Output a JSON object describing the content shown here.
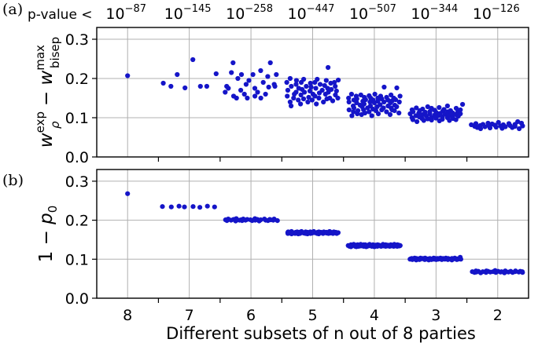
{
  "chart_data": [
    {
      "type": "scatter",
      "panel_label": "(a)",
      "ylabel": {
        "base": "w",
        "sub": "ρ",
        "sup": "exp",
        "op": " − ",
        "base2": "w",
        "sub2": "bisep",
        "sup2": "max"
      },
      "ylim": [
        0.0,
        0.33
      ],
      "yticks": [
        "0.0",
        "0.1",
        "0.2",
        "0.3"
      ],
      "grid": true,
      "marker_color": "#1515c8",
      "pvalue_prefix": "p-value <",
      "pvalues": [
        {
          "base": "10",
          "exp": "−87"
        },
        {
          "base": "10",
          "exp": "−145"
        },
        {
          "base": "10",
          "exp": "−258"
        },
        {
          "base": "10",
          "exp": "−447"
        },
        {
          "base": "10",
          "exp": "−507"
        },
        {
          "base": "10",
          "exp": "−344"
        },
        {
          "base": "10",
          "exp": "−126"
        }
      ],
      "groups": [
        {
          "category": "8",
          "y": [
            0.207
          ]
        },
        {
          "category": "7",
          "y": [
            0.188,
            0.18,
            0.21,
            0.176,
            0.248,
            0.18,
            0.18,
            0.212
          ]
        },
        {
          "category": "6",
          "y": [
            0.165,
            0.18,
            0.175,
            0.215,
            0.24,
            0.155,
            0.15,
            0.2,
            0.17,
            0.21,
            0.16,
            0.185,
            0.15,
            0.195,
            0.21,
            0.155,
            0.175,
            0.165,
            0.22,
            0.15,
            0.19,
            0.16,
            0.205,
            0.178,
            0.24,
            0.185,
            0.18,
            0.21
          ]
        },
        {
          "category": "5",
          "y": [
            0.19,
            0.155,
            0.17,
            0.14,
            0.2,
            0.13,
            0.18,
            0.16,
            0.15,
            0.185,
            0.165,
            0.195,
            0.145,
            0.175,
            0.135,
            0.19,
            0.158,
            0.172,
            0.148,
            0.198,
            0.165,
            0.18,
            0.14,
            0.152,
            0.188,
            0.168,
            0.178,
            0.145,
            0.16,
            0.19,
            0.155,
            0.175,
            0.135,
            0.198,
            0.163,
            0.15,
            0.185,
            0.17,
            0.14,
            0.182,
            0.16,
            0.195,
            0.148,
            0.175,
            0.165,
            0.228,
            0.15,
            0.188,
            0.172,
            0.143,
            0.19,
            0.158,
            0.18,
            0.15,
            0.168,
            0.196
          ]
        },
        {
          "category": "4",
          "y": [
            0.15,
            0.12,
            0.14,
            0.105,
            0.16,
            0.13,
            0.115,
            0.145,
            0.125,
            0.155,
            0.11,
            0.138,
            0.148,
            0.118,
            0.132,
            0.158,
            0.108,
            0.142,
            0.128,
            0.152,
            0.12,
            0.135,
            0.112,
            0.146,
            0.125,
            0.156,
            0.14,
            0.115,
            0.15,
            0.13,
            0.105,
            0.145,
            0.122,
            0.138,
            0.16,
            0.118,
            0.15,
            0.128,
            0.142,
            0.11,
            0.155,
            0.133,
            0.12,
            0.148,
            0.125,
            0.178,
            0.14,
            0.115,
            0.152,
            0.13,
            0.145,
            0.108,
            0.138,
            0.125,
            0.158,
            0.12,
            0.143,
            0.132,
            0.15,
            0.118,
            0.146,
            0.128,
            0.176,
            0.112,
            0.14,
            0.155
          ]
        },
        {
          "category": "3",
          "y": [
            0.11,
            0.1,
            0.12,
            0.095,
            0.115,
            0.105,
            0.125,
            0.09,
            0.112,
            0.102,
            0.118,
            0.098,
            0.108,
            0.122,
            0.093,
            0.114,
            0.104,
            0.128,
            0.097,
            0.11,
            0.116,
            0.101,
            0.124,
            0.094,
            0.107,
            0.119,
            0.099,
            0.113,
            0.105,
            0.126,
            0.092,
            0.111,
            0.103,
            0.117,
            0.096,
            0.121,
            0.109,
            0.1,
            0.115,
            0.13,
            0.106,
            0.093,
            0.118,
            0.102,
            0.112,
            0.098,
            0.124,
            0.108,
            0.095,
            0.114,
            0.104,
            0.12,
            0.11,
            0.134
          ]
        },
        {
          "category": "2",
          "y": [
            0.082,
            0.078,
            0.085,
            0.075,
            0.08,
            0.072,
            0.083,
            0.077,
            0.086,
            0.079,
            0.074,
            0.084,
            0.081,
            0.076,
            0.088,
            0.079,
            0.073,
            0.082,
            0.077,
            0.085,
            0.08,
            0.075,
            0.083,
            0.078,
            0.09,
            0.072,
            0.086,
            0.079
          ]
        }
      ]
    },
    {
      "type": "scatter",
      "panel_label": "(b)",
      "ylabel": {
        "prefix": "1 − ",
        "base": "p",
        "sub": "0"
      },
      "xlabel": "Different subsets of n out of 8 parties",
      "ylim": [
        0.0,
        0.33
      ],
      "yticks": [
        "0.0",
        "0.1",
        "0.2",
        "0.3"
      ],
      "grid": true,
      "marker_color": "#1515c8",
      "groups": [
        {
          "category": "8",
          "y": [
            0.268
          ]
        },
        {
          "category": "7",
          "y": [
            0.235,
            0.234,
            0.236,
            0.234,
            0.235,
            0.233,
            0.236,
            0.234
          ]
        },
        {
          "category": "6",
          "y": [
            0.201,
            0.199,
            0.203,
            0.2,
            0.202,
            0.198,
            0.204,
            0.2,
            0.201,
            0.199,
            0.203,
            0.2,
            0.202,
            0.201,
            0.199,
            0.204,
            0.2,
            0.202,
            0.198,
            0.201,
            0.203,
            0.2,
            0.199,
            0.202,
            0.201,
            0.2,
            0.203,
            0.199
          ]
        },
        {
          "category": "5",
          "y": [
            0.168,
            0.166,
            0.17,
            0.167,
            0.169,
            0.165,
            0.171,
            0.168,
            0.166,
            0.169,
            0.167,
            0.17,
            0.165,
            0.168,
            0.169,
            0.166,
            0.171,
            0.167,
            0.168,
            0.17,
            0.166,
            0.169,
            0.167,
            0.165,
            0.17,
            0.168,
            0.166,
            0.169,
            0.167,
            0.171,
            0.168,
            0.166,
            0.169,
            0.167,
            0.17,
            0.165,
            0.168,
            0.169,
            0.167,
            0.166,
            0.17,
            0.168,
            0.169,
            0.167,
            0.166,
            0.171,
            0.168,
            0.167,
            0.169,
            0.166,
            0.17,
            0.168,
            0.167,
            0.169,
            0.166,
            0.168
          ]
        },
        {
          "category": "4",
          "y": [
            0.135,
            0.133,
            0.137,
            0.134,
            0.136,
            0.132,
            0.138,
            0.135,
            0.133,
            0.136,
            0.134,
            0.137,
            0.132,
            0.135,
            0.136,
            0.133,
            0.138,
            0.134,
            0.135,
            0.137,
            0.133,
            0.136,
            0.134,
            0.132,
            0.137,
            0.135,
            0.133,
            0.136,
            0.134,
            0.138,
            0.135,
            0.133,
            0.136,
            0.134,
            0.137,
            0.132,
            0.135,
            0.136,
            0.134,
            0.133,
            0.137,
            0.135,
            0.136,
            0.134,
            0.133,
            0.138,
            0.135,
            0.134,
            0.136,
            0.133,
            0.137,
            0.135,
            0.134,
            0.136,
            0.133,
            0.135,
            0.137,
            0.134,
            0.136,
            0.133,
            0.135,
            0.138,
            0.134,
            0.136,
            0.133,
            0.135,
            0.137,
            0.134,
            0.136,
            0.135
          ]
        },
        {
          "category": "3",
          "y": [
            0.101,
            0.1,
            0.102,
            0.099,
            0.101,
            0.103,
            0.1,
            0.098,
            0.102,
            0.101,
            0.099,
            0.103,
            0.1,
            0.101,
            0.102,
            0.099,
            0.1,
            0.103,
            0.101,
            0.098,
            0.102,
            0.1,
            0.101,
            0.099,
            0.103,
            0.1,
            0.102,
            0.101,
            0.099,
            0.1,
            0.102,
            0.101,
            0.103,
            0.1,
            0.099,
            0.101,
            0.102,
            0.1,
            0.101,
            0.103,
            0.099,
            0.102,
            0.1,
            0.101,
            0.098,
            0.102,
            0.1,
            0.101,
            0.103,
            0.099,
            0.101,
            0.1,
            0.102,
            0.101,
            0.105,
            0.1
          ]
        },
        {
          "category": "2",
          "y": [
            0.068,
            0.066,
            0.07,
            0.067,
            0.069,
            0.065,
            0.068,
            0.07,
            0.066,
            0.069,
            0.067,
            0.068,
            0.071,
            0.066,
            0.069,
            0.067,
            0.068,
            0.065,
            0.07,
            0.067,
            0.069,
            0.066,
            0.068,
            0.07,
            0.067,
            0.069,
            0.068,
            0.066
          ]
        }
      ]
    }
  ]
}
